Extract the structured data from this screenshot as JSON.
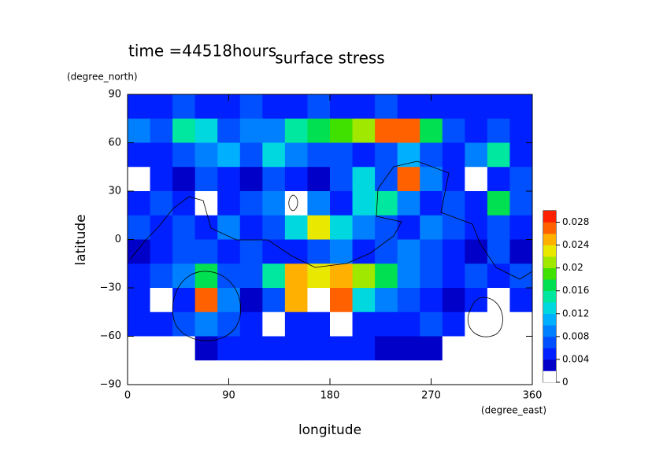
{
  "chart_data": {
    "type": "heatmap",
    "title": "surface stress",
    "subtitle": "time =44518hours",
    "x_label": "longitude",
    "x_unit": "(degree_east)",
    "y_label": "latitude",
    "y_unit": "(degree_north)",
    "xlim": [
      0,
      360
    ],
    "ylim": [
      -90,
      90
    ],
    "xticks": [
      0,
      90,
      180,
      270,
      360
    ],
    "yticks": [
      {
        "value": -90,
        "label": "−90"
      },
      {
        "value": -60,
        "label": "−60"
      },
      {
        "value": -30,
        "label": "−30"
      },
      0,
      30,
      60,
      90
    ],
    "xbins": [
      0,
      20,
      40,
      60,
      80,
      100,
      120,
      140,
      160,
      180,
      200,
      220,
      240,
      260,
      280,
      300,
      320,
      340,
      360
    ],
    "ybins": [
      90,
      75,
      60,
      45,
      30,
      15,
      0,
      -15,
      -30,
      -45,
      -60,
      -75,
      -90
    ],
    "values": [
      [
        0.004,
        0.004,
        0.006,
        0.004,
        0.004,
        0.006,
        0.004,
        0.004,
        0.006,
        0.004,
        0.004,
        0.006,
        0.004,
        0.004,
        0.004,
        0.004,
        0.004,
        0.004
      ],
      [
        0.008,
        0.006,
        0.014,
        0.012,
        0.006,
        0.008,
        0.008,
        0.014,
        0.016,
        0.018,
        0.02,
        0.026,
        0.026,
        0.016,
        0.006,
        0.004,
        0.006,
        0.004
      ],
      [
        0.004,
        0.004,
        0.006,
        0.008,
        0.01,
        0.006,
        0.012,
        0.008,
        0.006,
        0.006,
        0.004,
        0.006,
        0.01,
        0.006,
        0.004,
        0.008,
        0.014,
        0.004
      ],
      [
        0.001,
        0.004,
        0.002,
        0.006,
        0.004,
        0.002,
        0.006,
        0.004,
        0.002,
        0.006,
        0.012,
        0.006,
        0.026,
        0.008,
        0.004,
        0.001,
        0.004,
        0.006
      ],
      [
        0.004,
        0.006,
        0.004,
        0.001,
        0.004,
        0.006,
        0.008,
        0.001,
        0.008,
        0.004,
        0.012,
        0.014,
        0.008,
        0.004,
        0.006,
        0.004,
        0.016,
        0.006
      ],
      [
        0.006,
        0.004,
        0.006,
        0.004,
        0.008,
        0.004,
        0.006,
        0.012,
        0.022,
        0.012,
        0.008,
        0.006,
        0.004,
        0.008,
        0.006,
        0.004,
        0.006,
        0.004
      ],
      [
        0.002,
        0.004,
        0.006,
        0.006,
        0.004,
        0.006,
        0.004,
        0.004,
        0.006,
        0.008,
        0.004,
        0.006,
        0.008,
        0.006,
        0.004,
        0.002,
        0.006,
        0.002
      ],
      [
        0.004,
        0.006,
        0.008,
        0.016,
        0.006,
        0.006,
        0.014,
        0.024,
        0.022,
        0.024,
        0.02,
        0.016,
        0.008,
        0.006,
        0.004,
        0.006,
        0.004,
        0.006
      ],
      [
        0.004,
        0.001,
        0.004,
        0.026,
        0.008,
        0.002,
        0.006,
        0.024,
        0.001,
        0.026,
        0.012,
        0.008,
        0.006,
        0.004,
        0.002,
        0.004,
        0.001,
        0.004
      ],
      [
        0.004,
        0.004,
        0.006,
        0.008,
        0.006,
        0.004,
        0.001,
        0.004,
        0.004,
        0.001,
        0.004,
        0.004,
        0.004,
        0.006,
        0.004,
        0.001,
        0.001,
        0.001
      ],
      [
        0.001,
        0.001,
        0.001,
        0.003,
        0.004,
        0.004,
        0.004,
        0.004,
        0.004,
        0.004,
        0.004,
        0.003,
        0.003,
        0.003,
        0.001,
        0.001,
        0.001,
        0.001
      ],
      [
        0,
        0,
        0,
        0,
        0,
        0,
        0,
        0,
        0,
        0,
        0,
        0,
        0,
        0,
        0,
        0,
        0,
        0
      ]
    ],
    "levels": [
      0,
      0.002,
      0.004,
      0.006,
      0.008,
      0.01,
      0.012,
      0.014,
      0.016,
      0.018,
      0.02,
      0.022,
      0.024,
      0.026,
      0.028,
      0.03
    ],
    "colors": [
      "#ffffff",
      "#0000c8",
      "#0020ff",
      "#0050ff",
      "#0080ff",
      "#00b0ff",
      "#00d8e0",
      "#00e8a0",
      "#00e050",
      "#40e000",
      "#a0e800",
      "#e8e800",
      "#ffb000",
      "#ff6000",
      "#ff2000"
    ],
    "colorbar_ticks": [
      0,
      0.004,
      0.008,
      0.012,
      0.016,
      0.02,
      0.024,
      0.028
    ]
  }
}
